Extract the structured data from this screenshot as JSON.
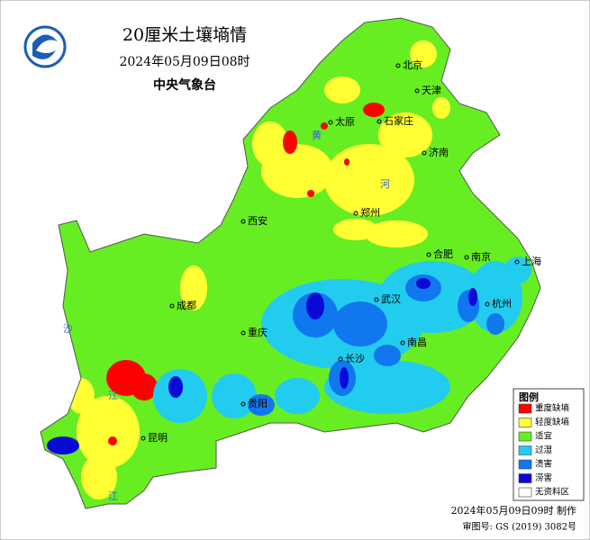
{
  "header": {
    "title": "20厘米土壤墒情",
    "datetime": "2024年05月09日08时",
    "agency": "中央气象台"
  },
  "cities": [
    "北京",
    "天津",
    "太原",
    "石家庄",
    "济南",
    "西安",
    "郑州",
    "合肥",
    "南京",
    "上海",
    "成都",
    "武汉",
    "杭州",
    "重庆",
    "南昌",
    "长沙",
    "贵阳",
    "昆明"
  ],
  "rivers": [
    "黄",
    "河",
    "沙",
    "江",
    "江"
  ],
  "legend": {
    "title": "图例",
    "items": [
      {
        "label": "重度缺墒",
        "color": "#ff0000"
      },
      {
        "label": "轻度缺墒",
        "color": "#ffff33"
      },
      {
        "label": "适宜",
        "color": "#66ee22"
      },
      {
        "label": "过湿",
        "color": "#22ccee"
      },
      {
        "label": "渍害",
        "color": "#1177ee"
      },
      {
        "label": "涝害",
        "color": "#0a0ad8"
      },
      {
        "label": "无资料区",
        "color": "#ffffff"
      }
    ]
  },
  "footer": {
    "made": "2024年05月09日09时 制作",
    "approval": "审图号: GS (2019) 3082号"
  }
}
